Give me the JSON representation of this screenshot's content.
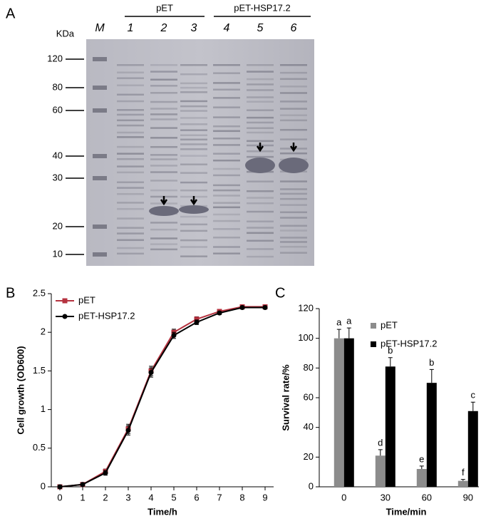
{
  "gel": {
    "panel": "A",
    "unit": "KDa",
    "groups": [
      "pET",
      "pET-HSP17.2"
    ],
    "lanes": [
      "M",
      "1",
      "2",
      "3",
      "4",
      "5",
      "6"
    ],
    "markers": [
      "120",
      "80",
      "60",
      "40",
      "30",
      "20",
      "10"
    ]
  },
  "chart_data": [
    {
      "type": "line",
      "panel": "B",
      "xlabel": "Time/h",
      "ylabel": "Cell growth (OD600)",
      "x": [
        0,
        1,
        2,
        3,
        4,
        5,
        6,
        7,
        8,
        9
      ],
      "series": [
        {
          "name": "pET",
          "color": "#b5323f",
          "marker": "square",
          "values": [
            0,
            0.03,
            0.2,
            0.75,
            1.5,
            2.0,
            2.17,
            2.27,
            2.33,
            2.33
          ],
          "errors": [
            0.02,
            0.02,
            0.03,
            0.06,
            0.06,
            0.04,
            0.03,
            0.02,
            0.02,
            0.02
          ]
        },
        {
          "name": "pET-HSP17.2",
          "color": "#000000",
          "marker": "circle",
          "values": [
            0,
            0.03,
            0.18,
            0.73,
            1.48,
            1.96,
            2.13,
            2.25,
            2.32,
            2.32
          ],
          "errors": [
            0.02,
            0.02,
            0.03,
            0.06,
            0.06,
            0.04,
            0.03,
            0.02,
            0.02,
            0.02
          ]
        }
      ],
      "xlim": [
        -0.375,
        9.375
      ],
      "xticks": [
        0,
        1,
        2,
        3,
        4,
        5,
        6,
        7,
        8,
        9
      ],
      "ylim": [
        0,
        2.5
      ],
      "yticks": [
        0,
        0.5,
        1,
        1.5,
        2,
        2.5
      ],
      "legend": "top-left"
    },
    {
      "type": "bar",
      "panel": "C",
      "xlabel": "Time/min",
      "ylabel": "Survival rate/%",
      "categories": [
        "0",
        "30",
        "60",
        "90"
      ],
      "series": [
        {
          "name": "pET",
          "color": "#8c8c8c",
          "values": [
            100,
            21,
            12,
            4
          ],
          "errors": [
            6,
            4,
            2,
            1
          ],
          "letters": [
            "a",
            "d",
            "e",
            "f"
          ]
        },
        {
          "name": "pET-HSP17.2",
          "color": "#000000",
          "values": [
            100,
            81,
            70,
            51
          ],
          "errors": [
            7,
            6,
            9,
            6
          ],
          "letters": [
            "a",
            "b",
            "b",
            "c"
          ]
        }
      ],
      "ylim": [
        0,
        120
      ],
      "yticks": [
        0,
        20,
        40,
        60,
        80,
        100,
        120
      ],
      "legend": "top-right"
    }
  ]
}
